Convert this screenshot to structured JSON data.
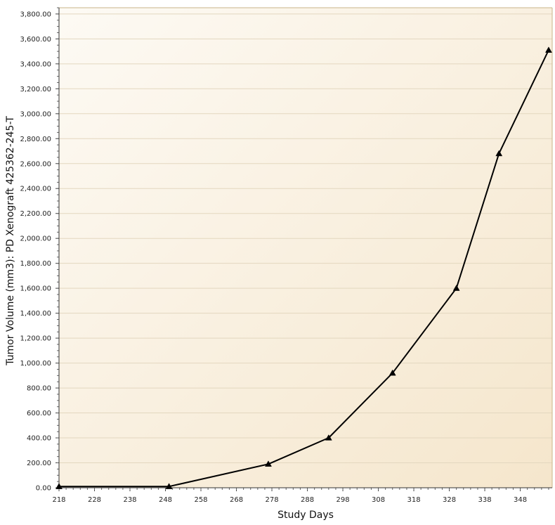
{
  "chart_data": {
    "type": "line",
    "title": "",
    "xlabel": "Study Days",
    "ylabel": "Tumor Volume (mm3): PD Xenograft 425362-245-T",
    "xlim": [
      218,
      357
    ],
    "ylim": [
      0,
      3850
    ],
    "x_ticks": [
      "218",
      "228",
      "238",
      "248",
      "258",
      "268",
      "278",
      "288",
      "298",
      "308",
      "318",
      "328",
      "338",
      "348"
    ],
    "y_ticks": [
      "0.00",
      "200.00",
      "400.00",
      "600.00",
      "800.00",
      "1,000.00",
      "1,200.00",
      "1,400.00",
      "1,600.00",
      "1,800.00",
      "2,000.00",
      "2,200.00",
      "2,400.00",
      "2,600.00",
      "2,800.00",
      "3,000.00",
      "3,200.00",
      "3,400.00",
      "3,600.00",
      "3,800.00"
    ],
    "series": [
      {
        "marker": "triangle",
        "color": "#000000",
        "x": [
          218,
          249,
          277,
          294,
          312,
          330,
          342,
          356
        ],
        "y": [
          10,
          10,
          190,
          400,
          920,
          1600,
          2680,
          3510
        ]
      }
    ],
    "grid": true,
    "legend": "none",
    "colors": {
      "plot_bg_start": "#fdfaf4",
      "plot_bg_end": "#f5e6cc",
      "grid": "#e3d7bf",
      "border": "#c9b48a"
    }
  }
}
